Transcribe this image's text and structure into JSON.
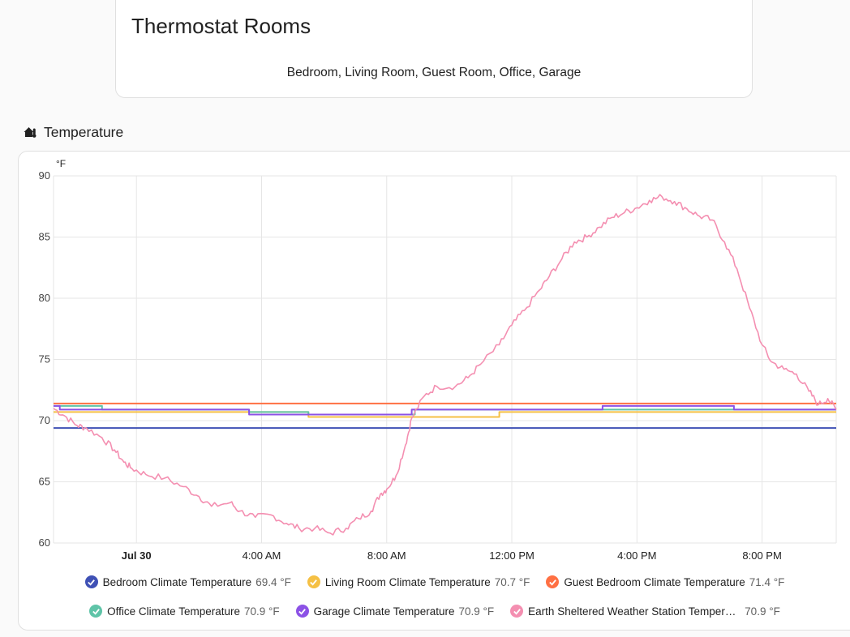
{
  "rooms_card": {
    "title": "Thermostat Rooms",
    "rooms_text": "Bedroom, Living Room, Guest Room, Office, Garage"
  },
  "section": {
    "icon": "home-thermometer-icon",
    "title": "Temperature"
  },
  "chart_data": {
    "type": "line",
    "ylabel": "°F",
    "ylim": [
      60,
      90
    ],
    "yticks": [
      60,
      65,
      70,
      75,
      80,
      85,
      90
    ],
    "x_range_hours": [
      -2.65,
      22.37
    ],
    "xticks": [
      {
        "hour": 0,
        "label": "Jul 30",
        "bold": true
      },
      {
        "hour": 4,
        "label": "4:00 AM",
        "bold": false
      },
      {
        "hour": 8,
        "label": "8:00 AM",
        "bold": false
      },
      {
        "hour": 12,
        "label": "12:00 PM",
        "bold": false
      },
      {
        "hour": 16,
        "label": "4:00 PM",
        "bold": false
      },
      {
        "hour": 20,
        "label": "8:00 PM",
        "bold": false
      }
    ],
    "grid": true,
    "legend_position": "bottom",
    "series": [
      {
        "name": "Bedroom Climate Temperature",
        "value_label": "69.4 °F",
        "color": "#3f51b5",
        "step": true,
        "points": [
          [
            -2.65,
            69.4
          ],
          [
            22.37,
            69.4
          ]
        ]
      },
      {
        "name": "Living Room Climate Temperature",
        "value_label": "70.7 °F",
        "color": "#f5c044",
        "step": true,
        "points": [
          [
            -2.65,
            70.7
          ],
          [
            1.8,
            70.7
          ],
          [
            5.5,
            70.3
          ],
          [
            11.6,
            70.7
          ],
          [
            22.37,
            70.7
          ]
        ]
      },
      {
        "name": "Guest Bedroom Climate Temperature",
        "value_label": "71.4 °F",
        "color": "#ff7043",
        "step": true,
        "points": [
          [
            -2.65,
            71.4
          ],
          [
            22.37,
            71.4
          ]
        ]
      },
      {
        "name": "Office Climate Temperature",
        "value_label": "70.9 °F",
        "color": "#5fc4a8",
        "step": true,
        "points": [
          [
            -2.65,
            71.2
          ],
          [
            -1.1,
            70.9
          ],
          [
            3.6,
            70.7
          ],
          [
            5.5,
            70.5
          ],
          [
            8.9,
            70.9
          ],
          [
            22.37,
            70.9
          ]
        ]
      },
      {
        "name": "Garage Climate Temperature",
        "value_label": "70.9 °F",
        "color": "#8c52e6",
        "step": true,
        "points": [
          [
            -2.65,
            71.2
          ],
          [
            -2.45,
            70.9
          ],
          [
            3.6,
            70.5
          ],
          [
            8.8,
            70.9
          ],
          [
            14.0,
            70.9
          ],
          [
            14.9,
            71.2
          ],
          [
            19.1,
            70.9
          ],
          [
            22.37,
            70.9
          ]
        ]
      },
      {
        "name": "Earth Sheltered Weather Station Temperature",
        "display_name": "Earth Sheltered Weather Station Temperat…",
        "value_label": "70.9 °F",
        "color": "#f48fb1",
        "step": false,
        "points": [
          [
            -2.65,
            71.0
          ],
          [
            -2.2,
            70.2
          ],
          [
            -1.9,
            69.6
          ],
          [
            -1.6,
            69.4
          ],
          [
            -1.0,
            69.0
          ],
          [
            -0.5,
            68.0
          ],
          [
            0.0,
            67.2
          ],
          [
            -0.5,
            68.0
          ],
          [
            -0.3,
            67.5
          ],
          [
            -0.7,
            68.4
          ],
          [
            -0.4,
            67.8
          ],
          [
            -0.5,
            66.5
          ],
          [
            -0.5,
            66.5
          ]
        ]
      }
    ]
  },
  "legend": {
    "row1": [
      {
        "name": "Bedroom Climate Temperature",
        "value": "69.4 °F",
        "color": "#3f51b5"
      },
      {
        "name": "Living Room Climate Temperature",
        "value": "70.7 °F",
        "color": "#f5c044"
      },
      {
        "name": "Guest Bedroom Climate Temperature",
        "value": "71.4 °F",
        "color": "#ff7043"
      }
    ],
    "row2": [
      {
        "name": "Office Climate Temperature",
        "value": "70.9 °F",
        "color": "#5fc4a8"
      },
      {
        "name": "Garage Climate Temperature",
        "value": "70.9 °F",
        "color": "#8c52e6"
      },
      {
        "name": "Earth Sheltered Weather Station Temperat…",
        "value": "70.9 °F",
        "color": "#f48fb1"
      }
    ]
  }
}
